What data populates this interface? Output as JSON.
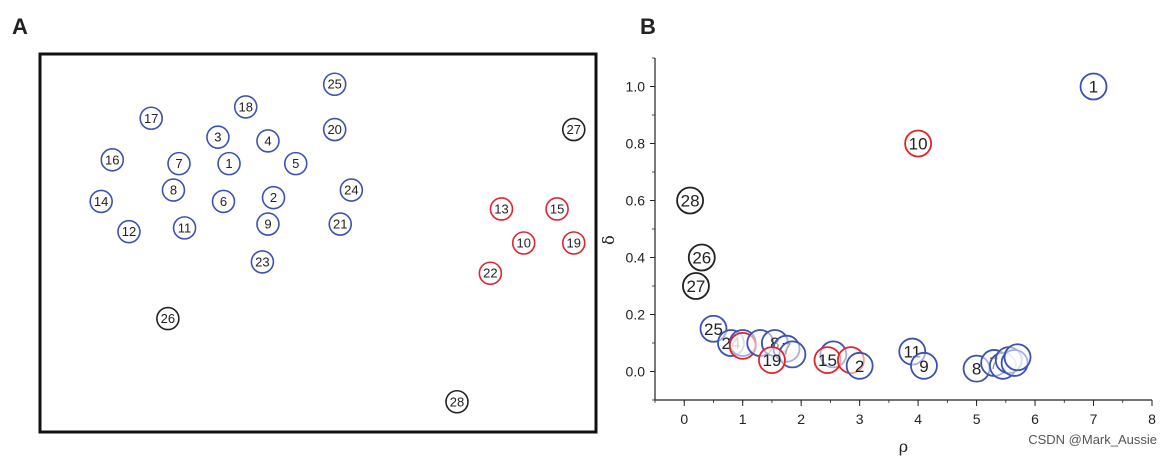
{
  "panels": {
    "a_label": "A",
    "b_label": "B"
  },
  "watermark": "CSDN @Mark_Aussie",
  "colors": {
    "blue": "#3b52b4",
    "red": "#e0242a",
    "black": "#222222"
  },
  "chart_data": [
    {
      "type": "scatter",
      "panel": "A",
      "description_free": true,
      "points": [
        {
          "label": "25",
          "x": 0.53,
          "y": 0.92,
          "color": "blue"
        },
        {
          "label": "18",
          "x": 0.37,
          "y": 0.86,
          "color": "blue"
        },
        {
          "label": "17",
          "x": 0.2,
          "y": 0.83,
          "color": "blue"
        },
        {
          "label": "20",
          "x": 0.53,
          "y": 0.8,
          "color": "blue"
        },
        {
          "label": "3",
          "x": 0.32,
          "y": 0.78,
          "color": "black-on-blue"
        },
        {
          "label": "4",
          "x": 0.41,
          "y": 0.77,
          "color": "blue"
        },
        {
          "label": "16",
          "x": 0.13,
          "y": 0.72,
          "color": "blue"
        },
        {
          "label": "7",
          "x": 0.25,
          "y": 0.71,
          "color": "blue"
        },
        {
          "label": "1",
          "x": 0.34,
          "y": 0.71,
          "color": "blue"
        },
        {
          "label": "5",
          "x": 0.46,
          "y": 0.71,
          "color": "blue"
        },
        {
          "label": "8",
          "x": 0.24,
          "y": 0.64,
          "color": "blue"
        },
        {
          "label": "24",
          "x": 0.56,
          "y": 0.64,
          "color": "blue"
        },
        {
          "label": "14",
          "x": 0.11,
          "y": 0.61,
          "color": "blue"
        },
        {
          "label": "6",
          "x": 0.33,
          "y": 0.61,
          "color": "blue"
        },
        {
          "label": "2",
          "x": 0.42,
          "y": 0.62,
          "color": "blue"
        },
        {
          "label": "12",
          "x": 0.16,
          "y": 0.53,
          "color": "blue"
        },
        {
          "label": "11",
          "x": 0.26,
          "y": 0.54,
          "color": "blue"
        },
        {
          "label": "9",
          "x": 0.41,
          "y": 0.55,
          "color": "blue"
        },
        {
          "label": "21",
          "x": 0.54,
          "y": 0.55,
          "color": "blue"
        },
        {
          "label": "23",
          "x": 0.4,
          "y": 0.45,
          "color": "blue"
        },
        {
          "label": "27",
          "x": 0.96,
          "y": 0.8,
          "color": "black"
        },
        {
          "label": "13",
          "x": 0.83,
          "y": 0.59,
          "color": "red"
        },
        {
          "label": "15",
          "x": 0.93,
          "y": 0.59,
          "color": "red"
        },
        {
          "label": "10",
          "x": 0.87,
          "y": 0.5,
          "color": "red"
        },
        {
          "label": "19",
          "x": 0.96,
          "y": 0.5,
          "color": "red"
        },
        {
          "label": "22",
          "x": 0.81,
          "y": 0.42,
          "color": "red"
        },
        {
          "label": "26",
          "x": 0.23,
          "y": 0.3,
          "color": "black"
        },
        {
          "label": "28",
          "x": 0.75,
          "y": 0.08,
          "color": "black"
        }
      ]
    },
    {
      "type": "scatter",
      "panel": "B",
      "xlabel": "ρ",
      "ylabel": "δ",
      "xlim": [
        -0.5,
        8
      ],
      "ylim": [
        -0.1,
        1.1
      ],
      "xticks": [
        0,
        1,
        2,
        3,
        4,
        5,
        6,
        7,
        8
      ],
      "yticks": [
        0.0,
        0.2,
        0.4,
        0.6,
        0.8,
        1.0
      ],
      "points": [
        {
          "label": "1",
          "x": 7.0,
          "y": 1.0,
          "color": "blue"
        },
        {
          "label": "10",
          "x": 4.0,
          "y": 0.8,
          "color": "red"
        },
        {
          "label": "28",
          "x": 0.1,
          "y": 0.6,
          "color": "black"
        },
        {
          "label": "26",
          "x": 0.3,
          "y": 0.4,
          "color": "black"
        },
        {
          "label": "27",
          "x": 0.2,
          "y": 0.3,
          "color": "black"
        },
        {
          "label": "25",
          "x": 0.5,
          "y": 0.15,
          "color": "blue"
        },
        {
          "label": "24",
          "x": 0.8,
          "y": 0.1,
          "color": "blue"
        },
        {
          "label": "",
          "x": 1.0,
          "y": 0.1,
          "color": "blue"
        },
        {
          "label": "",
          "x": 1.0,
          "y": 0.09,
          "color": "red"
        },
        {
          "label": "",
          "x": 1.3,
          "y": 0.1,
          "color": "blue"
        },
        {
          "label": "8",
          "x": 1.55,
          "y": 0.1,
          "color": "blue"
        },
        {
          "label": "7",
          "x": 1.75,
          "y": 0.08,
          "color": "blue"
        },
        {
          "label": "",
          "x": 1.85,
          "y": 0.06,
          "color": "blue"
        },
        {
          "label": "19",
          "x": 1.5,
          "y": 0.04,
          "color": "red"
        },
        {
          "label": "",
          "x": 2.55,
          "y": 0.06,
          "color": "blue"
        },
        {
          "label": "15",
          "x": 2.45,
          "y": 0.04,
          "color": "red"
        },
        {
          "label": "",
          "x": 2.85,
          "y": 0.04,
          "color": "red"
        },
        {
          "label": "2",
          "x": 3.0,
          "y": 0.02,
          "color": "blue"
        },
        {
          "label": "11",
          "x": 3.9,
          "y": 0.07,
          "color": "blue"
        },
        {
          "label": "9",
          "x": 4.1,
          "y": 0.02,
          "color": "blue"
        },
        {
          "label": "8",
          "x": 5.0,
          "y": 0.01,
          "color": "blue"
        },
        {
          "label": "7",
          "x": 5.3,
          "y": 0.03,
          "color": "blue"
        },
        {
          "label": "",
          "x": 5.45,
          "y": 0.02,
          "color": "blue"
        },
        {
          "label": "",
          "x": 5.55,
          "y": 0.04,
          "color": "blue"
        },
        {
          "label": "",
          "x": 5.65,
          "y": 0.03,
          "color": "blue"
        },
        {
          "label": "",
          "x": 5.7,
          "y": 0.05,
          "color": "blue"
        }
      ]
    }
  ]
}
